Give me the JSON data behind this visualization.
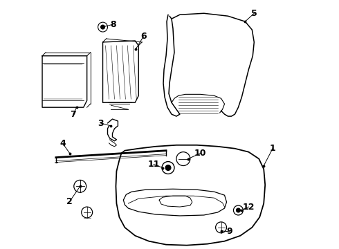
{
  "bg_color": "#ffffff",
  "line_color": "#000000",
  "text_color": "#000000",
  "font_size": 9,
  "line_width": 1.0
}
